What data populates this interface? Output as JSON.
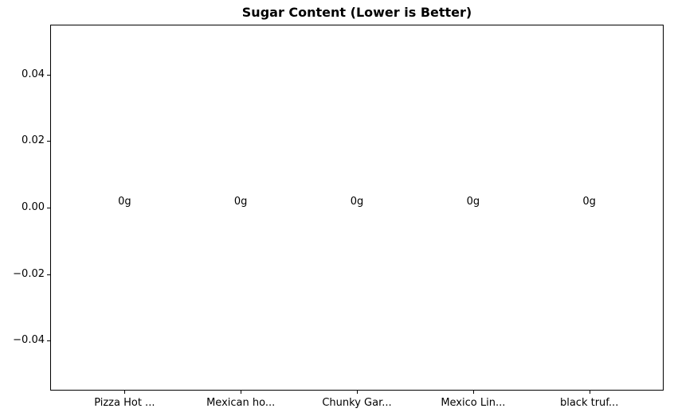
{
  "chart_data": {
    "type": "bar",
    "title": "Sugar Content (Lower is Better)",
    "categories": [
      "Pizza Hot ...",
      "Mexican ho...",
      "Chunky Gar...",
      "Mexico Lin...",
      "black truf..."
    ],
    "values": [
      0,
      0,
      0,
      0,
      0
    ],
    "bar_labels": [
      "0g",
      "0g",
      "0g",
      "0g",
      "0g"
    ],
    "unit": "g",
    "xlabel": "",
    "ylabel": "",
    "ylim": [
      -0.055,
      0.055
    ],
    "yticks": [
      0.04,
      0.02,
      0.0,
      -0.02,
      -0.04
    ],
    "ytick_labels": [
      "0.04",
      "0.02",
      "0.00",
      "−0.02",
      "−0.04"
    ],
    "grid": false,
    "legend_position": "none",
    "colors": {
      "background": "#ffffff",
      "axis": "#000000",
      "text": "#000000"
    }
  }
}
